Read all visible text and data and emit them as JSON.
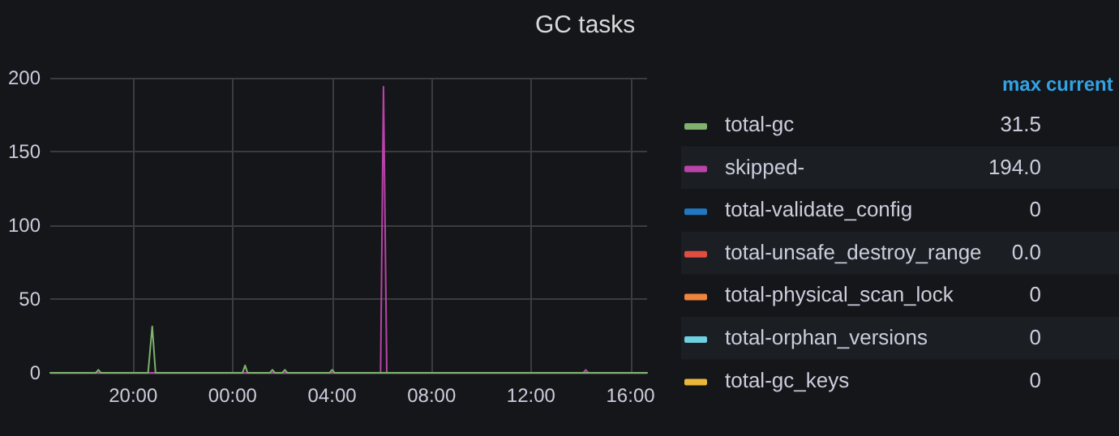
{
  "chart_data": {
    "type": "line",
    "title": "GC tasks",
    "xlim": [
      "--01-01T16:40",
      "--01-02T16:40"
    ],
    "xticks": [
      {
        "value": "--01-01T20:00",
        "label": "20:00"
      },
      {
        "value": "--01-02T00:00",
        "label": "00:00"
      },
      {
        "value": "--01-02T04:00",
        "label": "04:00"
      },
      {
        "value": "--01-02T08:00",
        "label": "08:00"
      },
      {
        "value": "--01-02T12:00",
        "label": "12:00"
      },
      {
        "value": "--01-02T16:00",
        "label": "16:00"
      }
    ],
    "ylim": [
      0,
      200
    ],
    "yticks": [
      0,
      50,
      100,
      150,
      200
    ],
    "grid": true,
    "legend": "right",
    "marker": "none",
    "line_style": "solid",
    "annotations": [
      "max",
      "current",
      "31.5",
      "194.0",
      "0",
      "0.0",
      "0",
      "0",
      "0"
    ],
    "series": [
      {
        "name": "total-gc",
        "color": "#7eb26d",
        "x": [
          "--01-01T16:40",
          "--01-01T18:30",
          "--01-01T18:36",
          "--01-01T18:42",
          "--01-01T20:36",
          "--01-01T20:46",
          "--01-01T20:54",
          "--01-02T00:24",
          "--01-02T00:30",
          "--01-02T00:36",
          "--01-02T01:30",
          "--01-02T01:36",
          "--01-02T01:42",
          "--01-02T02:00",
          "--01-02T02:06",
          "--01-02T02:12",
          "--01-02T03:54",
          "--01-02T04:00",
          "--01-02T04:06",
          "--01-02T16:40"
        ],
        "values": [
          0,
          0,
          2,
          0,
          0,
          31.5,
          0,
          0,
          5,
          0,
          0,
          2,
          0,
          0,
          2,
          0,
          0,
          2,
          0,
          0
        ]
      },
      {
        "name": "skipped-",
        "color": "#ba43a9",
        "x": [
          "--01-01T16:40",
          "--01-02T05:57",
          "--01-02T06:04",
          "--01-02T06:12",
          "--01-02T14:06",
          "--01-02T14:12",
          "--01-02T14:18",
          "--01-02T16:40"
        ],
        "values": [
          0,
          0,
          194,
          0,
          0,
          2,
          0,
          0
        ]
      },
      {
        "name": "total-validate_config",
        "color": "#1f78c1",
        "values": [
          null,
          null
        ]
      },
      {
        "name": "total-unsafe_destroy_range",
        "color": "#e24d42",
        "values": [
          null,
          null
        ]
      },
      {
        "name": "total-physical_scan_lock",
        "color": "#ef843c",
        "values": [
          null,
          null
        ]
      },
      {
        "name": "total-orphan_versions",
        "color": "#6ed0e0",
        "values": [
          null,
          null
        ]
      },
      {
        "name": "total-gc_keys",
        "color": "#eab839",
        "values": [
          null,
          null
        ]
      }
    ]
  }
}
